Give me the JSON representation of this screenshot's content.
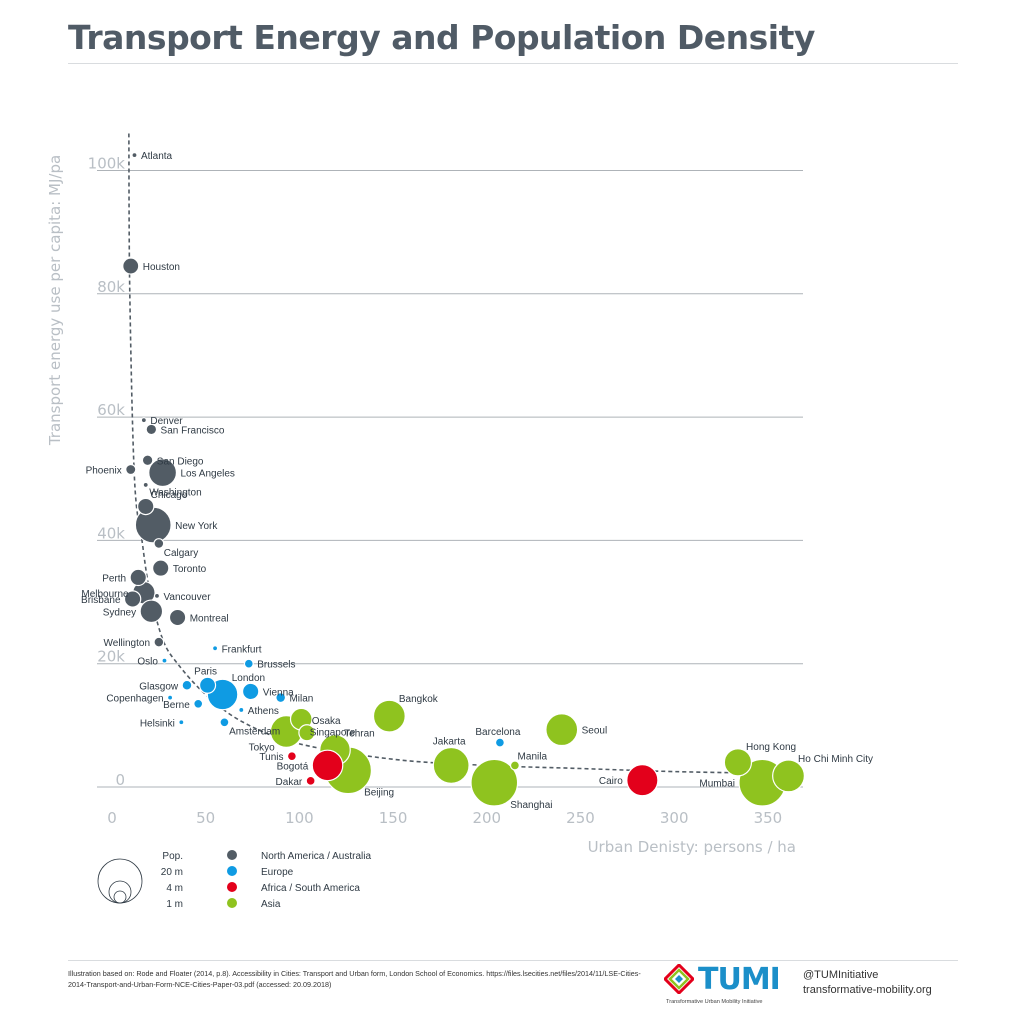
{
  "title": "Transport Energy and Population Density",
  "chart_data": {
    "type": "scatter",
    "title": "Transport Energy and Population Density",
    "xlabel": "Urban Denisty: persons / ha",
    "ylabel": "Transport energy use per capita: MJ/pa",
    "xlim": [
      0,
      360
    ],
    "ylim": [
      0,
      105000
    ],
    "x_ticks": [
      "0",
      "50",
      "100",
      "150",
      "200",
      "250",
      "300",
      "350"
    ],
    "y_ticks": [
      "0",
      "20k",
      "40k",
      "60k",
      "80k",
      "100k"
    ],
    "grid": true,
    "legend": {
      "size_title": "Pop.",
      "sizes": [
        "20 m",
        "4 m",
        "1 m"
      ],
      "regions": [
        {
          "name": "North America / Australia",
          "color": "#525c65"
        },
        {
          "name": "Europe",
          "color": "#0f9be3"
        },
        {
          "name": "Africa / South America",
          "color": "#e3001b"
        },
        {
          "name": "Asia",
          "color": "#8fc31f"
        }
      ]
    },
    "trend_line": [
      [
        9,
        106000
      ],
      [
        9.5,
        80000
      ],
      [
        12,
        50000
      ],
      [
        16,
        40000
      ],
      [
        20,
        32000
      ],
      [
        27,
        24000
      ],
      [
        35,
        20000
      ],
      [
        50,
        15000
      ],
      [
        70,
        10500
      ],
      [
        100,
        7000
      ],
      [
        150,
        4500
      ],
      [
        200,
        3500
      ],
      [
        250,
        3000
      ],
      [
        300,
        2500
      ],
      [
        355,
        2200
      ],
      [
        365,
        2100
      ]
    ],
    "points": [
      {
        "city": "Atlanta",
        "x": 12,
        "y": 102500,
        "pop": 0.3,
        "region": "North America / Australia"
      },
      {
        "city": "Houston",
        "x": 10,
        "y": 84500,
        "pop": 3.3,
        "region": "North America / Australia"
      },
      {
        "city": "Denver",
        "x": 17,
        "y": 59500,
        "pop": 0.3,
        "region": "North America / Australia"
      },
      {
        "city": "San Francisco",
        "x": 21,
        "y": 58000,
        "pop": 1.4,
        "region": "North America / Australia"
      },
      {
        "city": "San Diego",
        "x": 19,
        "y": 53000,
        "pop": 1.4,
        "region": "North America / Australia"
      },
      {
        "city": "Phoenix",
        "x": 10,
        "y": 51500,
        "pop": 1.3,
        "region": "North America / Australia"
      },
      {
        "city": "Los Angeles",
        "x": 27,
        "y": 51000,
        "pop": 9.9,
        "region": "North America / Australia"
      },
      {
        "city": "Washington",
        "x": 18,
        "y": 49000,
        "pop": 0.3,
        "region": "North America / Australia"
      },
      {
        "city": "Chicago",
        "x": 18,
        "y": 45500,
        "pop": 3.4,
        "region": "North America / Australia"
      },
      {
        "city": "New York",
        "x": 22,
        "y": 42500,
        "pop": 16.5,
        "region": "North America / Australia"
      },
      {
        "city": "Calgary",
        "x": 25,
        "y": 39500,
        "pop": 1.2,
        "region": "North America / Australia"
      },
      {
        "city": "Toronto",
        "x": 26,
        "y": 35500,
        "pop": 3.4,
        "region": "North America / Australia"
      },
      {
        "city": "Perth",
        "x": 14,
        "y": 34000,
        "pop": 3.4,
        "region": "North America / Australia"
      },
      {
        "city": "Melbourne",
        "x": 17,
        "y": 31500,
        "pop": 6.5,
        "region": "North America / Australia"
      },
      {
        "city": "Vancouver",
        "x": 24,
        "y": 31000,
        "pop": 0.3,
        "region": "North America / Australia"
      },
      {
        "city": "Brisbane",
        "x": 11,
        "y": 30500,
        "pop": 3.4,
        "region": "North America / Australia"
      },
      {
        "city": "Sydney",
        "x": 21,
        "y": 28500,
        "pop": 6.5,
        "region": "North America / Australia"
      },
      {
        "city": "Montreal",
        "x": 35,
        "y": 27500,
        "pop": 3.4,
        "region": "North America / Australia"
      },
      {
        "city": "Wellington",
        "x": 25,
        "y": 23500,
        "pop": 1.2,
        "region": "North America / Australia"
      },
      {
        "city": "Frankfurt",
        "x": 55,
        "y": 22500,
        "pop": 0.3,
        "region": "Europe"
      },
      {
        "city": "Oslo",
        "x": 28,
        "y": 20500,
        "pop": 0.3,
        "region": "Europe"
      },
      {
        "city": "Brussels",
        "x": 73,
        "y": 20000,
        "pop": 1.0,
        "region": "Europe"
      },
      {
        "city": "Glasgow",
        "x": 40,
        "y": 16500,
        "pop": 1.2,
        "region": "Europe"
      },
      {
        "city": "Paris",
        "x": 51,
        "y": 16500,
        "pop": 3.3,
        "region": "Europe"
      },
      {
        "city": "London",
        "x": 59,
        "y": 15000,
        "pop": 12.0,
        "region": "Europe"
      },
      {
        "city": "Vienna",
        "x": 74,
        "y": 15500,
        "pop": 3.4,
        "region": "Europe"
      },
      {
        "city": "Copenhagen",
        "x": 31,
        "y": 14500,
        "pop": 0.3,
        "region": "Europe"
      },
      {
        "city": "Milan",
        "x": 90,
        "y": 14500,
        "pop": 1.2,
        "region": "Europe"
      },
      {
        "city": "Berne",
        "x": 46,
        "y": 13500,
        "pop": 1.0,
        "region": "Europe"
      },
      {
        "city": "Athens",
        "x": 69,
        "y": 12500,
        "pop": 0.3,
        "region": "Europe"
      },
      {
        "city": "Helsinki",
        "x": 37,
        "y": 10500,
        "pop": 0.3,
        "region": "Europe"
      },
      {
        "city": "Amsterdam",
        "x": 60,
        "y": 10500,
        "pop": 1.0,
        "region": "Europe"
      },
      {
        "city": "Bangkok",
        "x": 148,
        "y": 11500,
        "pop": 13.0,
        "region": "Asia"
      },
      {
        "city": "Singapore",
        "x": 101,
        "y": 11000,
        "pop": 6.0,
        "region": "Asia"
      },
      {
        "city": "Osaka",
        "x": 104,
        "y": 8800,
        "pop": 3.3,
        "region": "Asia"
      },
      {
        "city": "Tokyo",
        "x": 93,
        "y": 9000,
        "pop": 13.0,
        "region": "Asia"
      },
      {
        "city": "Seoul",
        "x": 240,
        "y": 9300,
        "pop": 13.0,
        "region": "Asia"
      },
      {
        "city": "Barcelona",
        "x": 207,
        "y": 7200,
        "pop": 1.0,
        "region": "Europe"
      },
      {
        "city": "Tehran",
        "x": 119,
        "y": 6000,
        "pop": 12.0,
        "region": "Asia"
      },
      {
        "city": "Jakarta",
        "x": 181,
        "y": 3500,
        "pop": 16.5,
        "region": "Asia"
      },
      {
        "city": "Tunis",
        "x": 96,
        "y": 5000,
        "pop": 1.0,
        "region": "Africa / South America"
      },
      {
        "city": "Bogotá",
        "x": 115,
        "y": 3500,
        "pop": 12.0,
        "region": "Africa / South America"
      },
      {
        "city": "Beijing",
        "x": 126,
        "y": 2700,
        "pop": 28.0,
        "region": "Asia"
      },
      {
        "city": "Manila",
        "x": 215,
        "y": 3500,
        "pop": 1.0,
        "region": "Asia"
      },
      {
        "city": "Dakar",
        "x": 106,
        "y": 1000,
        "pop": 1.0,
        "region": "Africa / South America"
      },
      {
        "city": "Shanghai",
        "x": 204,
        "y": 700,
        "pop": 28.0,
        "region": "Asia"
      },
      {
        "city": "Cairo",
        "x": 283,
        "y": 1100,
        "pop": 12.5,
        "region": "Africa / South America"
      },
      {
        "city": "Mumbai",
        "x": 347,
        "y": 700,
        "pop": 28.0,
        "region": "Asia"
      },
      {
        "city": "Hong Kong",
        "x": 334,
        "y": 4000,
        "pop": 9.5,
        "region": "Asia"
      },
      {
        "city": "Ho Chi Minh City",
        "x": 361,
        "y": 1800,
        "pop": 13.0,
        "region": "Asia"
      }
    ]
  },
  "source": "Illustration based on: Rode and Floater (2014, p.8). Accessibility in Cities: Transport and Urban form, London School of Economics. https://files.lsecities.net/files/2014/11/LSE-Cities-2014-Transport-and-Urban-Form-NCE-Cities-Paper-03.pdf (accessed: 20.09.2018)",
  "logo": {
    "name": "TUMI",
    "tagline": "Transformative Urban Mobility Initiative",
    "colors": [
      "#e3001b",
      "#f7a600",
      "#8fc31f",
      "#1b8fc9",
      "#7d3f98"
    ]
  },
  "contact": {
    "handle": "@TUMInitiative",
    "url": "transformative-mobility.org"
  }
}
